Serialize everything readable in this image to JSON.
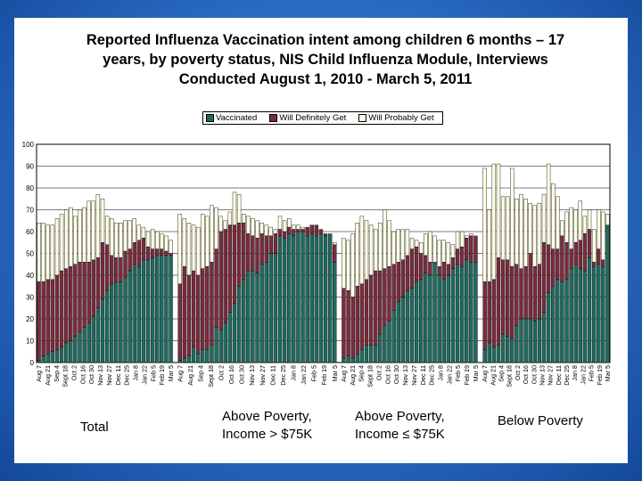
{
  "title": "Reported Influenza Vaccination intent among children 6 months – 17 years, by poverty status, NIS Child Influenza Module, Interviews Conducted August 1, 2010 - March 5, 2011",
  "group_labels": [
    {
      "line1": "Total",
      "line2": ""
    },
    {
      "line1": "Above Poverty,",
      "line2": "Income > $75K"
    },
    {
      "line1": "Above Poverty,",
      "line2": "Income ≤ $75K"
    },
    {
      "line1": "Below Poverty",
      "line2": ""
    }
  ],
  "colors": {
    "vaccinated": "#1f6b60",
    "definitely": "#7a2c3e",
    "probably": "#ffffe6"
  },
  "chart_data": {
    "type": "bar",
    "stacked": true,
    "legend": [
      "Vaccinated",
      "Will Definitely Get",
      "Will Probably Get"
    ],
    "legend_position": "top",
    "ylim": [
      0,
      100
    ],
    "yticks": [
      0,
      10,
      20,
      30,
      40,
      50,
      60,
      70,
      80,
      90,
      100
    ],
    "gridlines": true,
    "categories": [
      "Aug 7",
      "Aug 21",
      "Sep 4",
      "Sept 18",
      "Oct 2",
      "Oct 16",
      "Oct 30",
      "Nov 13",
      "Nov 27",
      "Dec 11",
      "Dec 25",
      "Jan 8",
      "Jan 22",
      "Feb 5",
      "Feb 19",
      "Mar 5"
    ],
    "groups": [
      {
        "name": "Total",
        "vaccinated": [
          1,
          3,
          4,
          5,
          6,
          7,
          9,
          10,
          12,
          14,
          16,
          18,
          21,
          25,
          29,
          33,
          36,
          37,
          37,
          39,
          42,
          45,
          44,
          47,
          47,
          48,
          49,
          49,
          49,
          49
        ],
        "definitely_cumulative": [
          37,
          37,
          38,
          38,
          40,
          42,
          43,
          44,
          45,
          46,
          46,
          46,
          47,
          48,
          55,
          54,
          49,
          48,
          48,
          51,
          52,
          55,
          56,
          57,
          53,
          52,
          52,
          52,
          51,
          50
        ],
        "total": [
          64,
          64,
          63,
          63,
          66,
          68,
          70,
          71,
          67,
          70,
          71,
          74,
          74,
          77,
          75,
          67,
          66,
          64,
          64,
          65,
          65,
          66,
          63,
          62,
          60,
          61,
          60,
          59,
          58,
          56
        ]
      },
      {
        "name": "Above Poverty, Income > $75K",
        "vaccinated": [
          1,
          2,
          3,
          7,
          4,
          6,
          6,
          8,
          16,
          15,
          18,
          23,
          27,
          35,
          38,
          42,
          42,
          41,
          45,
          46,
          50,
          50,
          58,
          57,
          59,
          58,
          60,
          60,
          58,
          59,
          58,
          59,
          58,
          59,
          46
        ],
        "definitely_cumulative": [
          36,
          44,
          40,
          42,
          40,
          43,
          44,
          46,
          52,
          60,
          61,
          63,
          63,
          64,
          64,
          59,
          58,
          57,
          59,
          58,
          58,
          59,
          61,
          60,
          62,
          61,
          61,
          61,
          62,
          63,
          63,
          61,
          59,
          58,
          54
        ],
        "total": [
          68,
          66,
          64,
          63,
          62,
          68,
          67,
          72,
          71,
          67,
          65,
          69,
          78,
          77,
          68,
          67,
          66,
          65,
          64,
          63,
          62,
          61,
          67,
          65,
          66,
          63,
          63,
          62,
          61,
          60,
          60,
          59,
          57,
          56,
          55
        ]
      },
      {
        "name": "Above Poverty, Income ≤ $75K",
        "vaccinated": [
          2,
          3,
          2,
          4,
          6,
          8,
          8,
          8,
          13,
          17,
          19,
          24,
          28,
          30,
          33,
          34,
          37,
          38,
          41,
          40,
          46,
          40,
          38,
          40,
          43,
          45,
          44,
          47,
          46,
          46
        ],
        "definitely_cumulative": [
          34,
          33,
          30,
          35,
          36,
          38,
          40,
          42,
          42,
          43,
          44,
          45,
          46,
          47,
          49,
          52,
          53,
          50,
          49,
          46,
          45,
          44,
          46,
          45,
          48,
          52,
          53,
          57,
          58,
          58
        ],
        "total": [
          57,
          56,
          59,
          64,
          67,
          65,
          63,
          61,
          64,
          70,
          65,
          60,
          61,
          61,
          61,
          57,
          56,
          55,
          59,
          60,
          58,
          56,
          56,
          55,
          54,
          60,
          60,
          58,
          59,
          58
        ]
      },
      {
        "name": "Below Poverty",
        "vaccinated": [
          6,
          9,
          7,
          8,
          13,
          12,
          11,
          17,
          20,
          20,
          20,
          19,
          20,
          23,
          32,
          35,
          38,
          37,
          38,
          43,
          45,
          43,
          42,
          48,
          44,
          45,
          44,
          63
        ],
        "definitely_cumulative": [
          37,
          37,
          38,
          48,
          47,
          47,
          44,
          45,
          43,
          44,
          50,
          44,
          45,
          55,
          54,
          52,
          52,
          58,
          55,
          52,
          55,
          56,
          59,
          61,
          46,
          52,
          47,
          60
        ],
        "total": [
          89,
          70,
          91,
          91,
          76,
          76,
          89,
          75,
          77,
          75,
          73,
          72,
          73,
          77,
          91,
          82,
          76,
          65,
          69,
          71,
          70,
          74,
          67,
          70,
          61,
          70,
          69,
          68
        ]
      }
    ]
  }
}
